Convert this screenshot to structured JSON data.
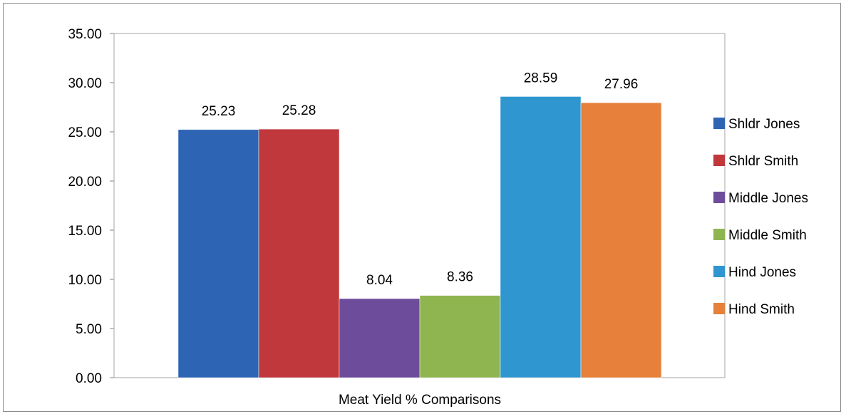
{
  "chart_data": {
    "type": "bar",
    "title": "",
    "xlabel": "Meat Yield % Comparisons",
    "ylabel": "",
    "categories": [
      "Meat Yield % Comparisons"
    ],
    "ylim": [
      0,
      35
    ],
    "ytick_step": 5,
    "ytick_labels": [
      "0.00",
      "5.00",
      "10.00",
      "15.00",
      "20.00",
      "25.00",
      "30.00",
      "35.00"
    ],
    "grid": true,
    "legend_position": "right",
    "series": [
      {
        "name": "Shldr Jones",
        "values": [
          25.23
        ],
        "label": "25.23",
        "color": "#2e64b4"
      },
      {
        "name": "Shldr Smith",
        "values": [
          25.28
        ],
        "label": "25.28",
        "color": "#c0373c"
      },
      {
        "name": "Middle Jones",
        "values": [
          8.04
        ],
        "label": "8.04",
        "color": "#6e4c9c"
      },
      {
        "name": "Middle Smith",
        "values": [
          8.36
        ],
        "label": "8.36",
        "color": "#8fb550"
      },
      {
        "name": "Hind Jones",
        "values": [
          28.59
        ],
        "label": "28.59",
        "color": "#2f96cf"
      },
      {
        "name": "Hind Smith",
        "values": [
          27.96
        ],
        "label": "27.96",
        "color": "#e6803a"
      }
    ]
  }
}
